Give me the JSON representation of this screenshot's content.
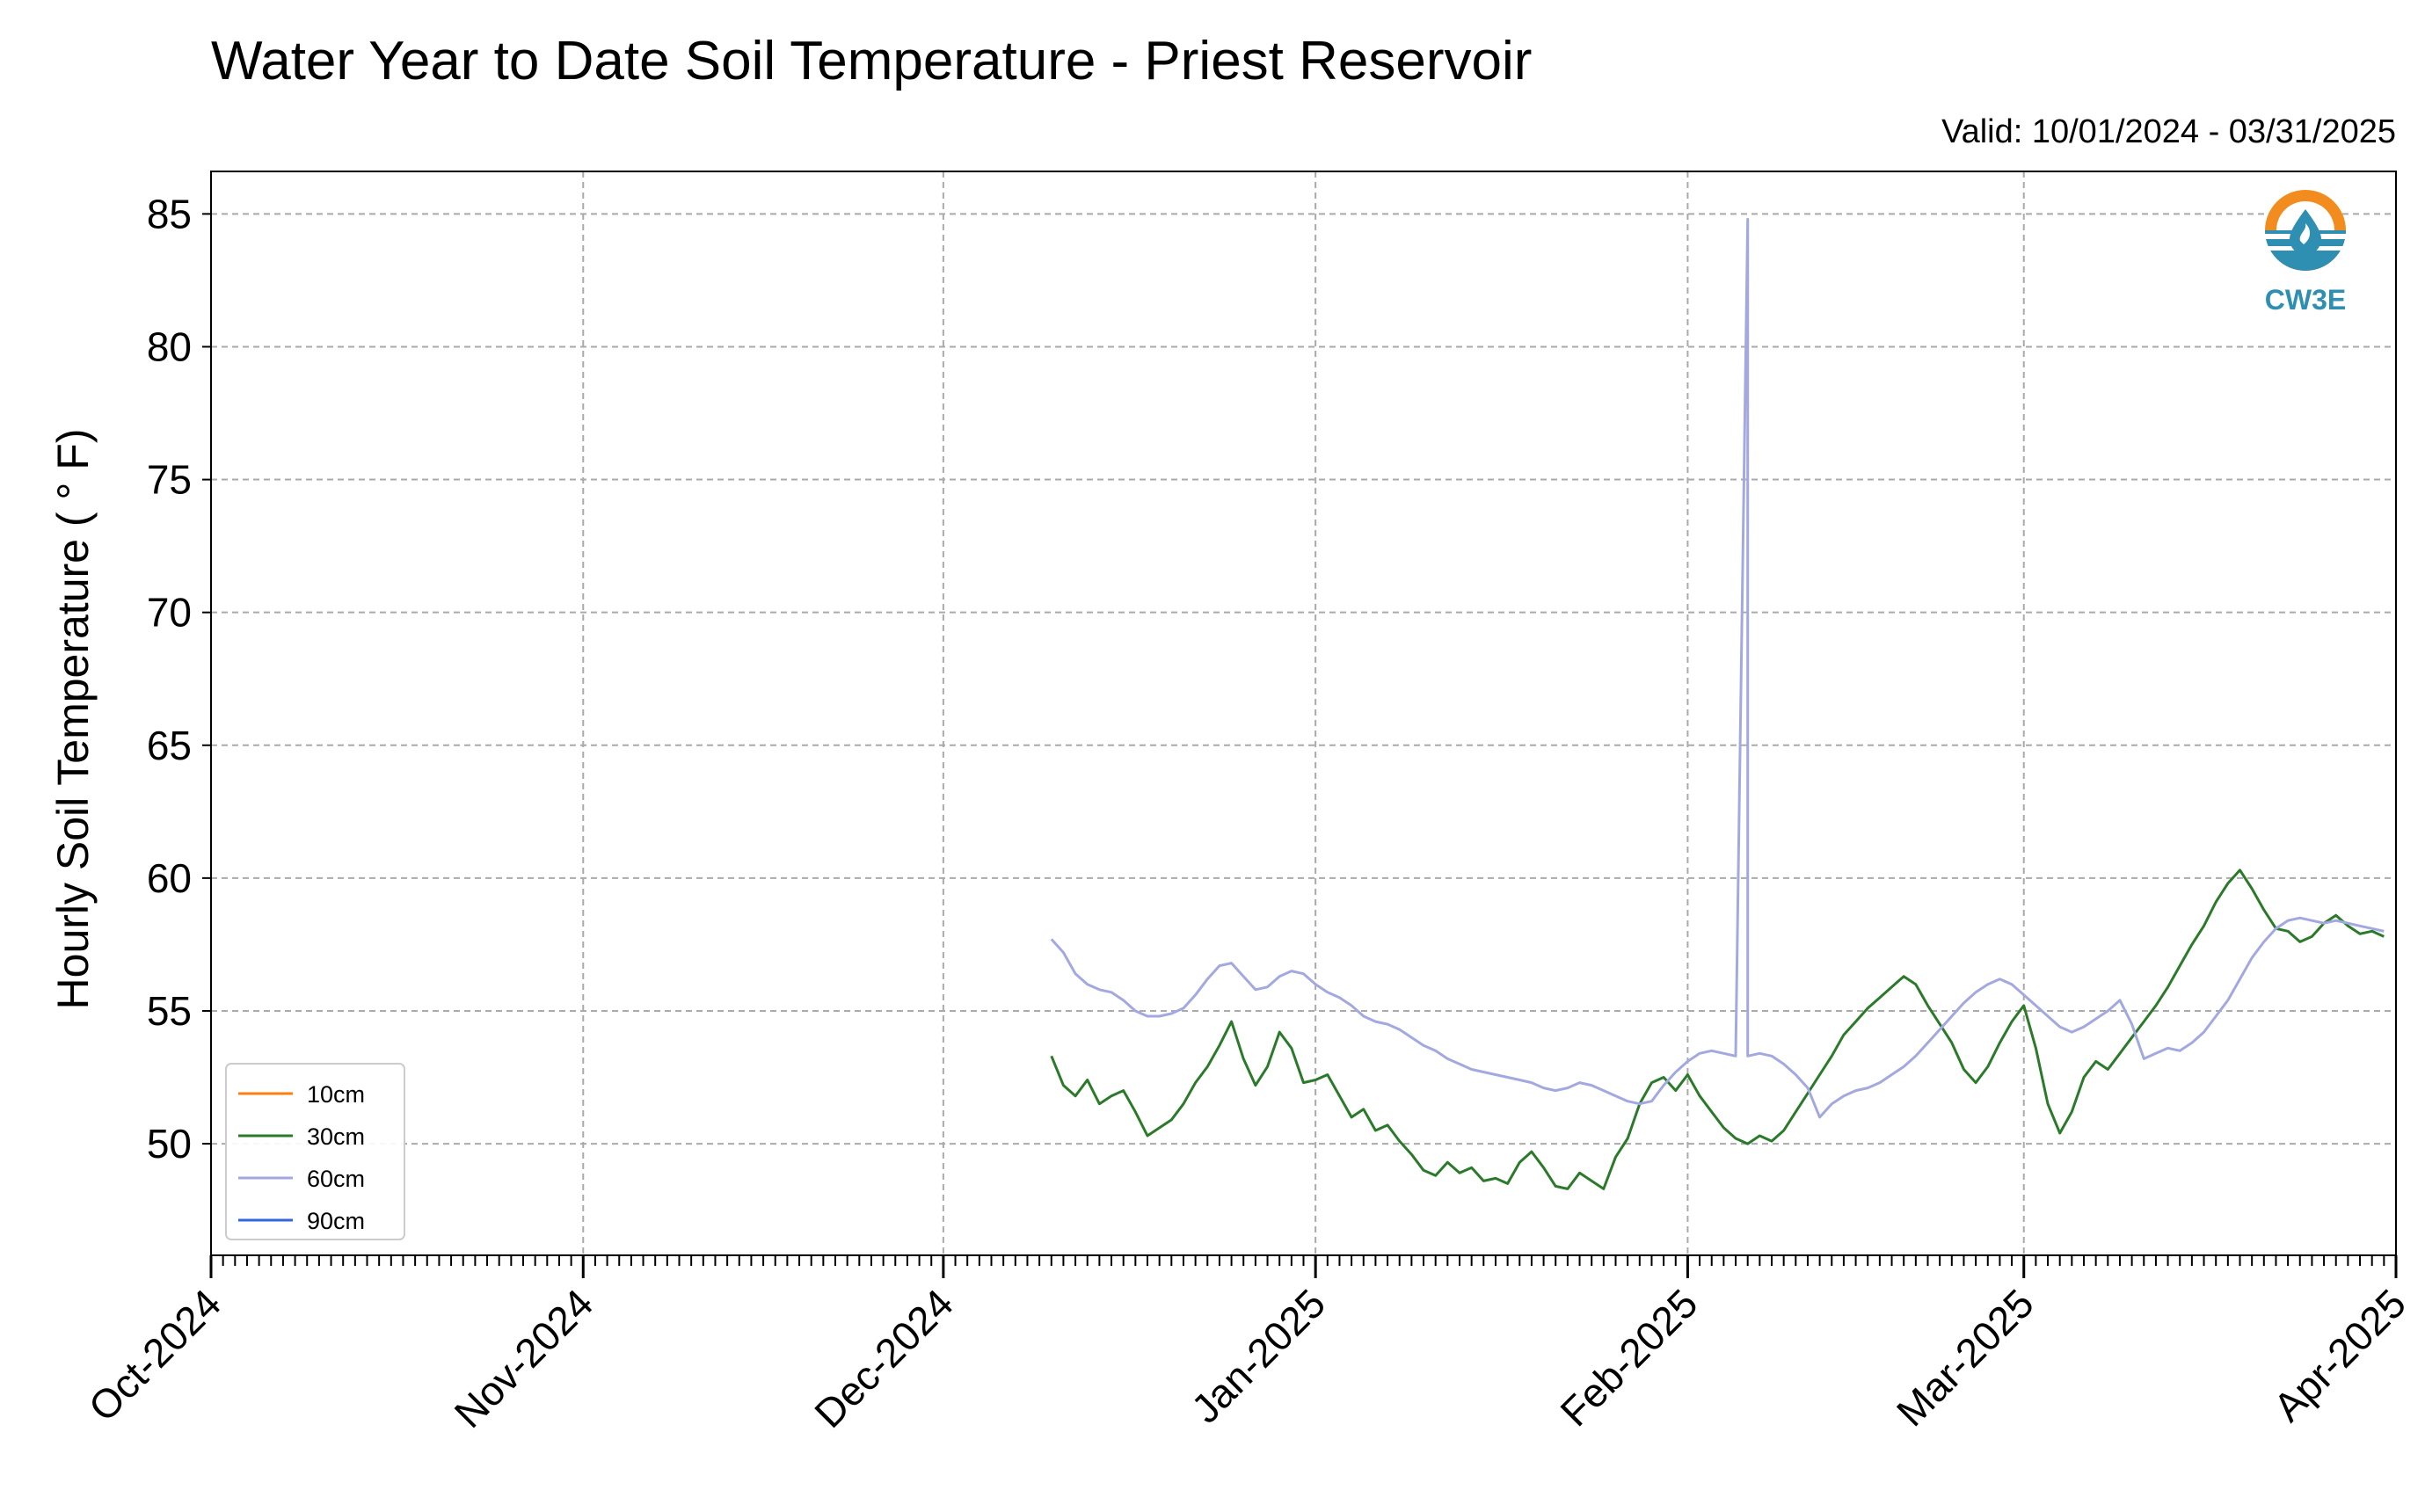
{
  "chart_data": {
    "type": "line",
    "title": "Water Year to Date Soil Temperature - Priest Reservoir",
    "subtitle": "Valid: 10/01/2024 - 03/31/2025",
    "ylabel": "Hourly Soil Temperature ( ° F)",
    "xlabel": "",
    "x_range": [
      "2024-10-01",
      "2025-04-01"
    ],
    "ylim": [
      45.8,
      86.6
    ],
    "yticks": [
      50,
      55,
      60,
      65,
      70,
      75,
      80,
      85
    ],
    "xticks": [
      {
        "date": "2024-10-01",
        "label": "Oct-2024"
      },
      {
        "date": "2024-11-01",
        "label": "Nov-2024"
      },
      {
        "date": "2024-12-01",
        "label": "Dec-2024"
      },
      {
        "date": "2025-01-01",
        "label": "Jan-2025"
      },
      {
        "date": "2025-02-01",
        "label": "Feb-2025"
      },
      {
        "date": "2025-03-01",
        "label": "Mar-2025"
      },
      {
        "date": "2025-04-01",
        "label": "Apr-2025"
      }
    ],
    "grid": true,
    "legend_position": "lower-left",
    "series": [
      {
        "name": "10cm",
        "color": "#ff7f0e",
        "points": []
      },
      {
        "name": "30cm",
        "color": "#2a7a2a",
        "points": [
          [
            "2024-12-10",
            53.3
          ],
          [
            "2024-12-11",
            52.2
          ],
          [
            "2024-12-12",
            51.8
          ],
          [
            "2024-12-13",
            52.4
          ],
          [
            "2024-12-14",
            51.5
          ],
          [
            "2024-12-15",
            51.8
          ],
          [
            "2024-12-16",
            52.0
          ],
          [
            "2024-12-17",
            51.2
          ],
          [
            "2024-12-18",
            50.3
          ],
          [
            "2024-12-19",
            50.6
          ],
          [
            "2024-12-20",
            50.9
          ],
          [
            "2024-12-21",
            51.5
          ],
          [
            "2024-12-22",
            52.3
          ],
          [
            "2024-12-23",
            52.9
          ],
          [
            "2024-12-24",
            53.7
          ],
          [
            "2024-12-25",
            54.6
          ],
          [
            "2024-12-26",
            53.2
          ],
          [
            "2024-12-27",
            52.2
          ],
          [
            "2024-12-28",
            52.9
          ],
          [
            "2024-12-29",
            54.2
          ],
          [
            "2024-12-30",
            53.6
          ],
          [
            "2024-12-31",
            52.3
          ],
          [
            "2025-01-01",
            52.4
          ],
          [
            "2025-01-02",
            52.6
          ],
          [
            "2025-01-03",
            51.8
          ],
          [
            "2025-01-04",
            51.0
          ],
          [
            "2025-01-05",
            51.3
          ],
          [
            "2025-01-06",
            50.5
          ],
          [
            "2025-01-07",
            50.7
          ],
          [
            "2025-01-08",
            50.1
          ],
          [
            "2025-01-09",
            49.6
          ],
          [
            "2025-01-10",
            49.0
          ],
          [
            "2025-01-11",
            48.8
          ],
          [
            "2025-01-12",
            49.3
          ],
          [
            "2025-01-13",
            48.9
          ],
          [
            "2025-01-14",
            49.1
          ],
          [
            "2025-01-15",
            48.6
          ],
          [
            "2025-01-16",
            48.7
          ],
          [
            "2025-01-17",
            48.5
          ],
          [
            "2025-01-18",
            49.3
          ],
          [
            "2025-01-19",
            49.7
          ],
          [
            "2025-01-20",
            49.1
          ],
          [
            "2025-01-21",
            48.4
          ],
          [
            "2025-01-22",
            48.3
          ],
          [
            "2025-01-23",
            48.9
          ],
          [
            "2025-01-24",
            48.6
          ],
          [
            "2025-01-25",
            48.3
          ],
          [
            "2025-01-26",
            49.5
          ],
          [
            "2025-01-27",
            50.2
          ],
          [
            "2025-01-28",
            51.5
          ],
          [
            "2025-01-29",
            52.3
          ],
          [
            "2025-01-30",
            52.5
          ],
          [
            "2025-01-31",
            52.0
          ],
          [
            "2025-02-01",
            52.6
          ],
          [
            "2025-02-02",
            51.8
          ],
          [
            "2025-02-03",
            51.2
          ],
          [
            "2025-02-04",
            50.6
          ],
          [
            "2025-02-05",
            50.2
          ],
          [
            "2025-02-06",
            50.0
          ],
          [
            "2025-02-07",
            50.3
          ],
          [
            "2025-02-08",
            50.1
          ],
          [
            "2025-02-09",
            50.5
          ],
          [
            "2025-02-10",
            51.2
          ],
          [
            "2025-02-11",
            51.9
          ],
          [
            "2025-02-12",
            52.6
          ],
          [
            "2025-02-13",
            53.3
          ],
          [
            "2025-02-14",
            54.1
          ],
          [
            "2025-02-15",
            54.6
          ],
          [
            "2025-02-16",
            55.1
          ],
          [
            "2025-02-17",
            55.5
          ],
          [
            "2025-02-18",
            55.9
          ],
          [
            "2025-02-19",
            56.3
          ],
          [
            "2025-02-20",
            56.0
          ],
          [
            "2025-02-21",
            55.2
          ],
          [
            "2025-02-22",
            54.5
          ],
          [
            "2025-02-23",
            53.8
          ],
          [
            "2025-02-24",
            52.8
          ],
          [
            "2025-02-25",
            52.3
          ],
          [
            "2025-02-26",
            52.9
          ],
          [
            "2025-02-27",
            53.8
          ],
          [
            "2025-02-28",
            54.6
          ],
          [
            "2025-03-01",
            55.2
          ],
          [
            "2025-03-02",
            53.6
          ],
          [
            "2025-03-03",
            51.5
          ],
          [
            "2025-03-04",
            50.4
          ],
          [
            "2025-03-05",
            51.2
          ],
          [
            "2025-03-06",
            52.5
          ],
          [
            "2025-03-07",
            53.1
          ],
          [
            "2025-03-08",
            52.8
          ],
          [
            "2025-03-09",
            53.4
          ],
          [
            "2025-03-10",
            54.0
          ],
          [
            "2025-03-11",
            54.6
          ],
          [
            "2025-03-12",
            55.2
          ],
          [
            "2025-03-13",
            55.9
          ],
          [
            "2025-03-14",
            56.7
          ],
          [
            "2025-03-15",
            57.5
          ],
          [
            "2025-03-16",
            58.2
          ],
          [
            "2025-03-17",
            59.1
          ],
          [
            "2025-03-18",
            59.8
          ],
          [
            "2025-03-19",
            60.3
          ],
          [
            "2025-03-20",
            59.6
          ],
          [
            "2025-03-21",
            58.8
          ],
          [
            "2025-03-22",
            58.1
          ],
          [
            "2025-03-23",
            58.0
          ],
          [
            "2025-03-24",
            57.6
          ],
          [
            "2025-03-25",
            57.8
          ],
          [
            "2025-03-26",
            58.3
          ],
          [
            "2025-03-27",
            58.6
          ],
          [
            "2025-03-28",
            58.2
          ],
          [
            "2025-03-29",
            57.9
          ],
          [
            "2025-03-30",
            58.0
          ],
          [
            "2025-03-31",
            57.8
          ]
        ]
      },
      {
        "name": "60cm",
        "color": "#a3a9e0",
        "points": [
          [
            "2024-12-10",
            57.7
          ],
          [
            "2024-12-11",
            57.2
          ],
          [
            "2024-12-12",
            56.4
          ],
          [
            "2024-12-13",
            56.0
          ],
          [
            "2024-12-14",
            55.8
          ],
          [
            "2024-12-15",
            55.7
          ],
          [
            "2024-12-16",
            55.4
          ],
          [
            "2024-12-17",
            55.0
          ],
          [
            "2024-12-18",
            54.8
          ],
          [
            "2024-12-19",
            54.8
          ],
          [
            "2024-12-20",
            54.9
          ],
          [
            "2024-12-21",
            55.1
          ],
          [
            "2024-12-22",
            55.6
          ],
          [
            "2024-12-23",
            56.2
          ],
          [
            "2024-12-24",
            56.7
          ],
          [
            "2024-12-25",
            56.8
          ],
          [
            "2024-12-26",
            56.3
          ],
          [
            "2024-12-27",
            55.8
          ],
          [
            "2024-12-28",
            55.9
          ],
          [
            "2024-12-29",
            56.3
          ],
          [
            "2024-12-30",
            56.5
          ],
          [
            "2024-12-31",
            56.4
          ],
          [
            "2025-01-01",
            56.0
          ],
          [
            "2025-01-02",
            55.7
          ],
          [
            "2025-01-03",
            55.5
          ],
          [
            "2025-01-04",
            55.2
          ],
          [
            "2025-01-05",
            54.8
          ],
          [
            "2025-01-06",
            54.6
          ],
          [
            "2025-01-07",
            54.5
          ],
          [
            "2025-01-08",
            54.3
          ],
          [
            "2025-01-09",
            54.0
          ],
          [
            "2025-01-10",
            53.7
          ],
          [
            "2025-01-11",
            53.5
          ],
          [
            "2025-01-12",
            53.2
          ],
          [
            "2025-01-13",
            53.0
          ],
          [
            "2025-01-14",
            52.8
          ],
          [
            "2025-01-15",
            52.7
          ],
          [
            "2025-01-16",
            52.6
          ],
          [
            "2025-01-17",
            52.5
          ],
          [
            "2025-01-18",
            52.4
          ],
          [
            "2025-01-19",
            52.3
          ],
          [
            "2025-01-20",
            52.1
          ],
          [
            "2025-01-21",
            52.0
          ],
          [
            "2025-01-22",
            52.1
          ],
          [
            "2025-01-23",
            52.3
          ],
          [
            "2025-01-24",
            52.2
          ],
          [
            "2025-01-25",
            52.0
          ],
          [
            "2025-01-26",
            51.8
          ],
          [
            "2025-01-27",
            51.6
          ],
          [
            "2025-01-28",
            51.5
          ],
          [
            "2025-01-29",
            51.6
          ],
          [
            "2025-01-30",
            52.2
          ],
          [
            "2025-01-31",
            52.7
          ],
          [
            "2025-02-01",
            53.1
          ],
          [
            "2025-02-02",
            53.4
          ],
          [
            "2025-02-03",
            53.5
          ],
          [
            "2025-02-04",
            53.4
          ],
          [
            "2025-02-05",
            53.3
          ],
          [
            "2025-02-06",
            84.8
          ],
          [
            "2025-02-06",
            53.3
          ],
          [
            "2025-02-07",
            53.4
          ],
          [
            "2025-02-08",
            53.3
          ],
          [
            "2025-02-09",
            53.0
          ],
          [
            "2025-02-10",
            52.6
          ],
          [
            "2025-02-11",
            52.1
          ],
          [
            "2025-02-12",
            51.0
          ],
          [
            "2025-02-13",
            51.5
          ],
          [
            "2025-02-14",
            51.8
          ],
          [
            "2025-02-15",
            52.0
          ],
          [
            "2025-02-16",
            52.1
          ],
          [
            "2025-02-17",
            52.3
          ],
          [
            "2025-02-18",
            52.6
          ],
          [
            "2025-02-19",
            52.9
          ],
          [
            "2025-02-20",
            53.3
          ],
          [
            "2025-02-21",
            53.8
          ],
          [
            "2025-02-22",
            54.3
          ],
          [
            "2025-02-23",
            54.8
          ],
          [
            "2025-02-24",
            55.3
          ],
          [
            "2025-02-25",
            55.7
          ],
          [
            "2025-02-26",
            56.0
          ],
          [
            "2025-02-27",
            56.2
          ],
          [
            "2025-02-28",
            56.0
          ],
          [
            "2025-03-01",
            55.6
          ],
          [
            "2025-03-02",
            55.2
          ],
          [
            "2025-03-03",
            54.8
          ],
          [
            "2025-03-04",
            54.4
          ],
          [
            "2025-03-05",
            54.2
          ],
          [
            "2025-03-06",
            54.4
          ],
          [
            "2025-03-07",
            54.7
          ],
          [
            "2025-03-08",
            55.0
          ],
          [
            "2025-03-09",
            55.4
          ],
          [
            "2025-03-10",
            54.5
          ],
          [
            "2025-03-11",
            53.2
          ],
          [
            "2025-03-12",
            53.4
          ],
          [
            "2025-03-13",
            53.6
          ],
          [
            "2025-03-14",
            53.5
          ],
          [
            "2025-03-15",
            53.8
          ],
          [
            "2025-03-16",
            54.2
          ],
          [
            "2025-03-17",
            54.8
          ],
          [
            "2025-03-18",
            55.4
          ],
          [
            "2025-03-19",
            56.2
          ],
          [
            "2025-03-20",
            57.0
          ],
          [
            "2025-03-21",
            57.6
          ],
          [
            "2025-03-22",
            58.1
          ],
          [
            "2025-03-23",
            58.4
          ],
          [
            "2025-03-24",
            58.5
          ],
          [
            "2025-03-25",
            58.4
          ],
          [
            "2025-03-26",
            58.3
          ],
          [
            "2025-03-27",
            58.4
          ],
          [
            "2025-03-28",
            58.3
          ],
          [
            "2025-03-29",
            58.2
          ],
          [
            "2025-03-30",
            58.1
          ],
          [
            "2025-03-31",
            58.0
          ]
        ]
      },
      {
        "name": "90cm",
        "color": "#3366dd",
        "points": []
      }
    ]
  },
  "logo": {
    "text": "CW3E",
    "ring_top_color": "#f28c1e",
    "wave_color": "#2f8fb3"
  }
}
